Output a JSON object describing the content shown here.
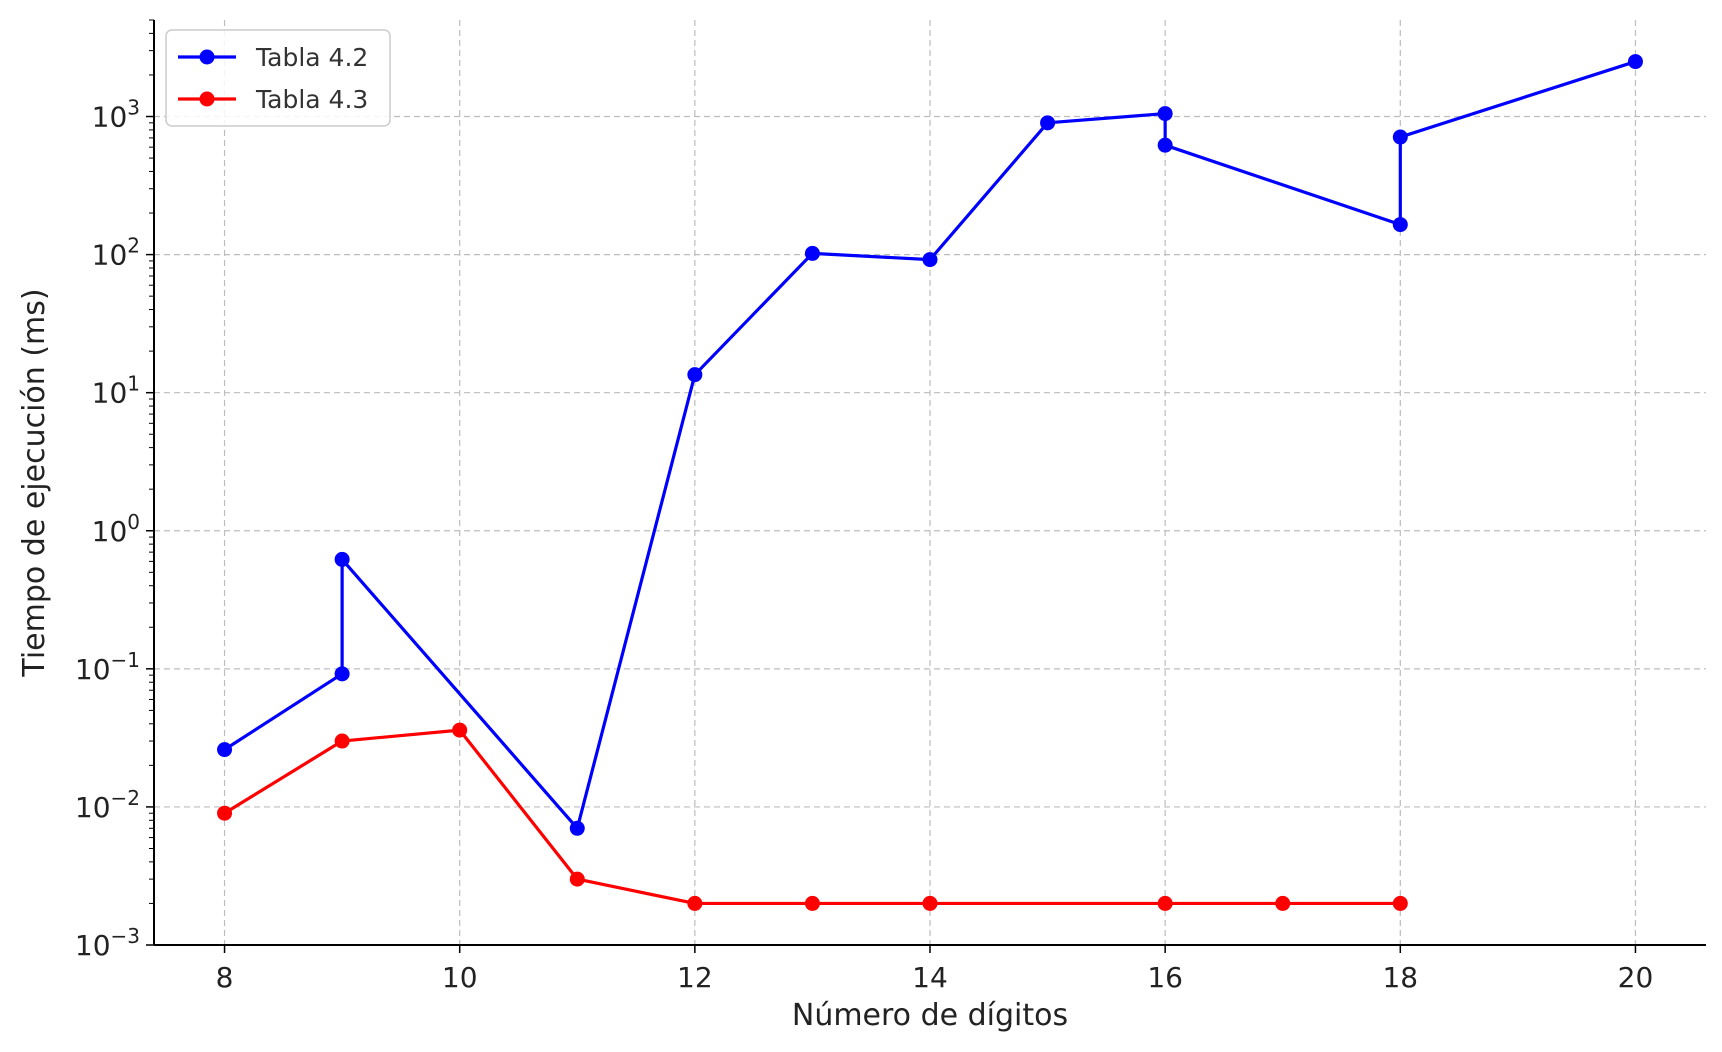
{
  "chart_data": {
    "type": "line",
    "title": "",
    "xlabel": "Número de dígitos",
    "ylabel": "Tiempo de ejecución (ms)",
    "xlim": [
      7.4,
      20.6
    ],
    "ylim": [
      0.001,
      5000
    ],
    "yscale": "log",
    "xticks": [
      8,
      10,
      12,
      14,
      16,
      18,
      20
    ],
    "yticks": [
      {
        "value": 0.001,
        "base": "10",
        "exp": "−3"
      },
      {
        "value": 0.01,
        "base": "10",
        "exp": "−2"
      },
      {
        "value": 0.1,
        "base": "10",
        "exp": "−1"
      },
      {
        "value": 1,
        "base": "10",
        "exp": "0"
      },
      {
        "value": 10,
        "base": "10",
        "exp": "1"
      },
      {
        "value": 100,
        "base": "10",
        "exp": "2"
      },
      {
        "value": 1000,
        "base": "10",
        "exp": "3"
      }
    ],
    "grid": true,
    "legend_position": "top-left",
    "series": [
      {
        "name": "Tabla 4.2",
        "color": "#0000ff",
        "x": [
          8,
          9,
          9,
          11,
          12,
          13,
          14,
          15,
          16,
          16,
          18,
          18,
          20
        ],
        "y": [
          0.026,
          0.092,
          0.62,
          0.007,
          13.5,
          102,
          92,
          900,
          1050,
          620,
          165,
          710,
          2500
        ]
      },
      {
        "name": "Tabla 4.3",
        "color": "#ff0000",
        "x": [
          8,
          9,
          10,
          11,
          12,
          13,
          14,
          16,
          17,
          18
        ],
        "y": [
          0.009,
          0.03,
          0.036,
          0.003,
          0.002,
          0.002,
          0.002,
          0.002,
          0.002,
          0.002
        ]
      }
    ]
  }
}
